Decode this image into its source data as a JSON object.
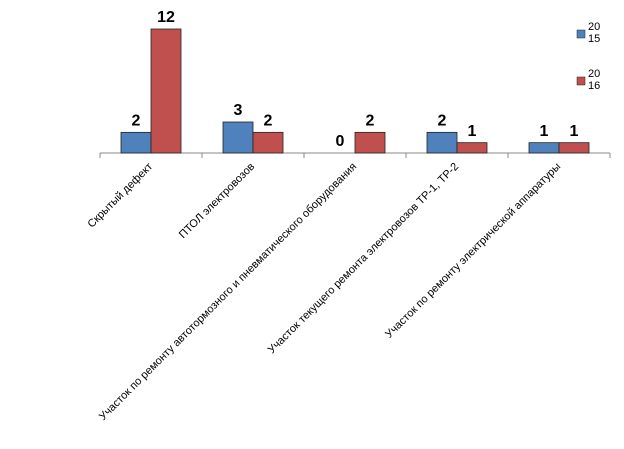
{
  "chart_data": {
    "type": "bar",
    "categories": [
      "Скрытый дефект",
      "ПТОЛ электровозов",
      "Участок по ремонту автотормозного и пневматического оборудования",
      "Участок текущего ремонта электровозов ТР-1, ТР-2",
      "Участок по ремонту электрической аппаратуры"
    ],
    "series": [
      {
        "name": "2015",
        "color": "#4f81bd",
        "values": [
          2,
          3,
          0,
          2,
          1
        ]
      },
      {
        "name": "2016",
        "color": "#c0504d",
        "values": [
          12,
          2,
          2,
          1,
          1
        ]
      }
    ],
    "legend": "right"
  }
}
